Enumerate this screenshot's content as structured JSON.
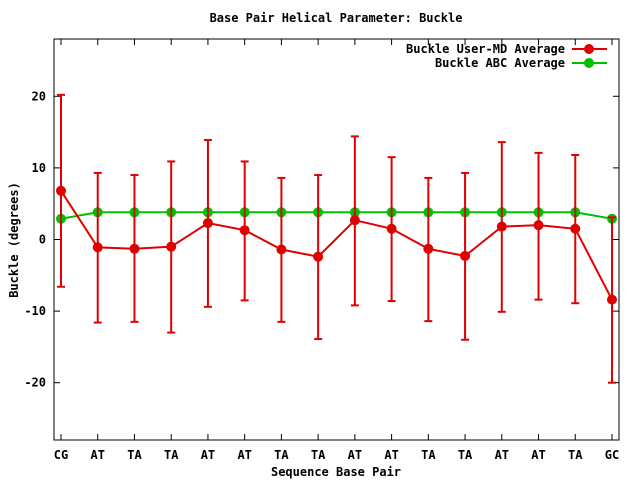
{
  "chart_data": {
    "type": "line",
    "title": "Base Pair Helical Parameter: Buckle",
    "xlabel": "Sequence Base Pair",
    "ylabel": "Buckle (degrees)",
    "categories": [
      "CG",
      "AT",
      "TA",
      "TA",
      "AT",
      "AT",
      "TA",
      "TA",
      "AT",
      "AT",
      "TA",
      "TA",
      "AT",
      "AT",
      "TA",
      "GC"
    ],
    "ylim": [
      -28,
      28
    ],
    "yticks": [
      -20,
      -10,
      0,
      10,
      20
    ],
    "legend_position": "top-right",
    "series": [
      {
        "name": "Buckle User-MD Average",
        "color": "#e00000",
        "values": [
          6.8,
          -1.1,
          -1.3,
          -1.0,
          2.3,
          1.3,
          -1.4,
          -2.4,
          2.7,
          1.5,
          -1.3,
          -2.3,
          1.8,
          2.0,
          1.5,
          -8.4
        ],
        "err_low": [
          -6.6,
          -11.6,
          -11.5,
          -13.0,
          -9.4,
          -8.5,
          -11.5,
          -13.9,
          -9.2,
          -8.6,
          -11.4,
          -14.0,
          -10.1,
          -8.4,
          -8.9,
          -20.0
        ],
        "err_high": [
          20.2,
          9.3,
          9.0,
          10.9,
          13.9,
          10.9,
          8.6,
          9.0,
          14.4,
          11.5,
          8.6,
          9.3,
          13.6,
          12.1,
          11.8,
          3.1
        ]
      },
      {
        "name": "Buckle ABC Average",
        "color": "#00c000",
        "values": [
          2.9,
          3.8,
          3.8,
          3.8,
          3.8,
          3.8,
          3.8,
          3.8,
          3.8,
          3.8,
          3.8,
          3.8,
          3.8,
          3.8,
          3.8,
          2.9
        ]
      }
    ]
  }
}
